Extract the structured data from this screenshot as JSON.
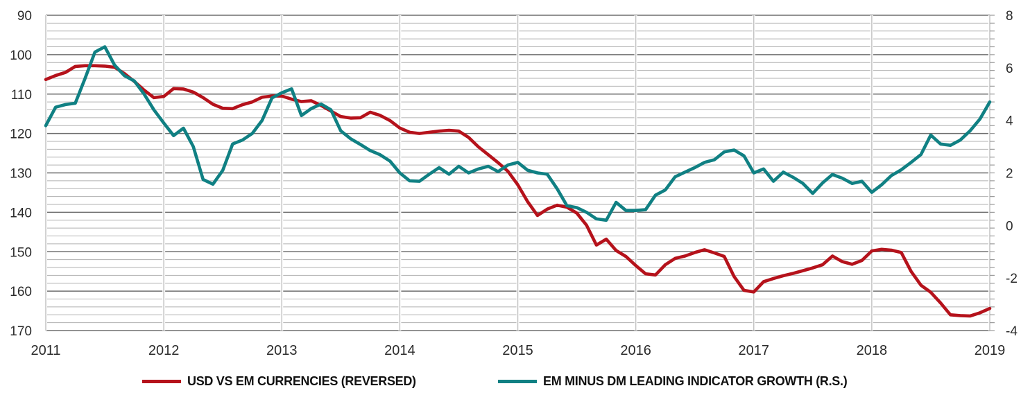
{
  "chart_data": {
    "type": "line",
    "grid": true,
    "legend_position": "bottom",
    "x_axis": {
      "interval": "monthly",
      "start_year": 2011,
      "end_year": 2019,
      "tick_labels": [
        "2011",
        "2012",
        "2013",
        "2014",
        "2015",
        "2016",
        "2017",
        "2018",
        "2019"
      ]
    },
    "left_axis": {
      "min": 90,
      "max": 170,
      "reversed": true,
      "major_step": 10,
      "minor_step": 2,
      "tick_labels": [
        "90",
        "100",
        "110",
        "120",
        "130",
        "140",
        "150",
        "160",
        "170"
      ]
    },
    "right_axis": {
      "min": -4,
      "max": 8,
      "major_step": 2,
      "tick_labels": [
        "8",
        "6",
        "4",
        "2",
        "0",
        "-2",
        "-4"
      ]
    },
    "series": [
      {
        "name": "USD VS EM CURRENCIES (REVERSED)",
        "axis": "left",
        "color": "#b5121b",
        "values": [
          106.3,
          105.3,
          104.5,
          103.0,
          102.8,
          102.8,
          102.9,
          103.2,
          104.8,
          106.8,
          109.0,
          110.9,
          110.6,
          108.6,
          108.7,
          109.5,
          110.9,
          112.6,
          113.6,
          113.7,
          112.7,
          112.0,
          110.8,
          110.5,
          110.5,
          111.3,
          111.9,
          111.7,
          112.9,
          114.3,
          115.7,
          116.1,
          116.0,
          114.6,
          115.4,
          116.7,
          118.6,
          119.7,
          120.0,
          119.7,
          119.4,
          119.2,
          119.4,
          121.0,
          123.4,
          125.4,
          127.4,
          129.6,
          133.0,
          137.3,
          140.8,
          139.2,
          138.2,
          138.7,
          140.2,
          143.3,
          148.3,
          146.8,
          149.7,
          151.2,
          153.5,
          155.6,
          155.9,
          153.3,
          151.7,
          151.1,
          150.2,
          149.5,
          150.3,
          151.2,
          156.3,
          159.8,
          160.2,
          157.6,
          156.8,
          156.1,
          155.5,
          154.8,
          154.1,
          153.3,
          151.1,
          152.5,
          153.2,
          152.2,
          149.8,
          149.4,
          149.6,
          150.2,
          155.0,
          158.5,
          160.3,
          163.0,
          166.0,
          166.2,
          166.3,
          165.5,
          164.4
        ]
      },
      {
        "name": "EM MINUS DM LEADING INDICATOR GROWTH (R.S.)",
        "axis": "right",
        "color": "#108083",
        "values": [
          3.8,
          4.5,
          4.6,
          4.65,
          5.6,
          6.6,
          6.8,
          6.1,
          5.7,
          5.5,
          5.0,
          4.4,
          3.9,
          3.42,
          3.7,
          3.0,
          1.75,
          1.57,
          2.1,
          3.1,
          3.25,
          3.5,
          4.0,
          4.85,
          5.05,
          5.2,
          4.18,
          4.45,
          4.62,
          4.4,
          3.6,
          3.3,
          3.08,
          2.85,
          2.69,
          2.45,
          2.0,
          1.7,
          1.68,
          1.95,
          2.2,
          1.95,
          2.25,
          2.0,
          2.15,
          2.25,
          2.05,
          2.3,
          2.4,
          2.1,
          2.0,
          1.95,
          1.4,
          0.75,
          0.68,
          0.5,
          0.25,
          0.2,
          0.88,
          0.57,
          0.57,
          0.6,
          1.15,
          1.35,
          1.85,
          2.03,
          2.2,
          2.4,
          2.5,
          2.8,
          2.87,
          2.65,
          2.0,
          2.15,
          1.68,
          2.03,
          1.83,
          1.6,
          1.22,
          1.62,
          1.94,
          1.8,
          1.6,
          1.68,
          1.26,
          1.55,
          1.9,
          2.12,
          2.4,
          2.7,
          3.44,
          3.1,
          3.05,
          3.25,
          3.6,
          4.05,
          4.7
        ]
      }
    ],
    "style": {
      "minor_grid_color": "#b0b0b0",
      "major_grid_color": "#6e6e6e",
      "year_grid_color": "#c4c4c4",
      "tick_color": "#9a9a9a",
      "line_width": 4.6
    }
  },
  "legend": {
    "items": [
      {
        "label": "USD VS EM CURRENCIES (REVERSED)",
        "color": "#b5121b"
      },
      {
        "label": "EM MINUS DM LEADING INDICATOR GROWTH (R.S.)",
        "color": "#108083"
      }
    ]
  }
}
